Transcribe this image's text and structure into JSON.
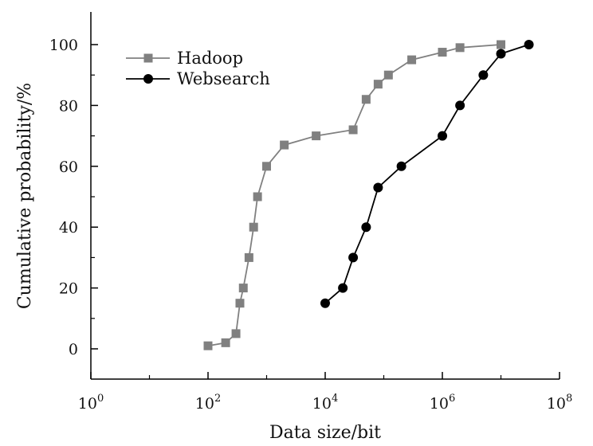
{
  "chart_data": {
    "type": "line",
    "xlabel": "Data size/bit",
    "ylabel": "Cumulative probability/%",
    "xscale": "log10",
    "xlim": [
      1,
      100000000
    ],
    "ylim": [
      -10,
      110
    ],
    "x_ticks": [
      {
        "value": 1,
        "base": "10",
        "exp": "0"
      },
      {
        "value": 100,
        "base": "10",
        "exp": "2"
      },
      {
        "value": 10000,
        "base": "10",
        "exp": "4"
      },
      {
        "value": 1000000,
        "base": "10",
        "exp": "6"
      },
      {
        "value": 100000000,
        "base": "10",
        "exp": "8"
      }
    ],
    "y_ticks": [
      0,
      20,
      40,
      60,
      80,
      100
    ],
    "grid": false,
    "legend_position": "top-left",
    "series": [
      {
        "name": "Hadoop",
        "color": "#808080",
        "marker": "square",
        "points": [
          [
            100,
            1
          ],
          [
            200,
            2
          ],
          [
            300,
            5
          ],
          [
            350,
            15
          ],
          [
            400,
            20
          ],
          [
            500,
            30
          ],
          [
            600,
            40
          ],
          [
            700,
            50
          ],
          [
            1000,
            60
          ],
          [
            2000,
            67
          ],
          [
            7000,
            70
          ],
          [
            30000,
            72
          ],
          [
            50000,
            82
          ],
          [
            80000,
            87
          ],
          [
            120000,
            90
          ],
          [
            300000,
            95
          ],
          [
            1000000,
            97.5
          ],
          [
            2000000,
            99
          ],
          [
            10000000,
            100
          ]
        ]
      },
      {
        "name": "Websearch",
        "color": "#000000",
        "marker": "circle",
        "points": [
          [
            10000,
            15
          ],
          [
            20000,
            20
          ],
          [
            30000,
            30
          ],
          [
            50000,
            40
          ],
          [
            80000,
            53
          ],
          [
            200000,
            60
          ],
          [
            1000000,
            70
          ],
          [
            2000000,
            80
          ],
          [
            5000000,
            90
          ],
          [
            10000000,
            97
          ],
          [
            30000000,
            100
          ]
        ]
      }
    ]
  }
}
